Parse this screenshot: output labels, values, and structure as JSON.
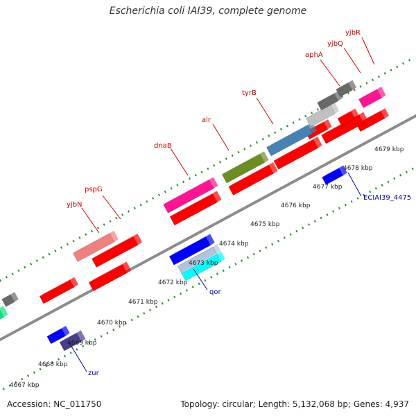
{
  "title": "Escherichia coli IAI39, complete genome",
  "accession_text": "Accession: NC_011750",
  "summary_text": "Topology: circular; Length: 5,132,068 bp; Genes: 4,937",
  "colors": {
    "backbone": "#8c8c8c",
    "dots_top": "#2e8b2e",
    "dots_bottom": "#2e8b2e",
    "label_plus": "#cc0000",
    "label_minus": "#0000aa"
  },
  "ticks": [
    {
      "label": "4667 kbp"
    },
    {
      "label": "4668 kbp"
    },
    {
      "label": "4669 kbp"
    },
    {
      "label": "4670 kbp"
    },
    {
      "label": "4671 kbp"
    },
    {
      "label": "4672 kbp"
    },
    {
      "label": "4673 kbp"
    },
    {
      "label": "4674 kbp"
    },
    {
      "label": "4675 kbp"
    },
    {
      "label": "4676 kbp"
    },
    {
      "label": "4677 kbp"
    },
    {
      "label": "4678 kbp"
    },
    {
      "label": "4679 kbp"
    }
  ],
  "gene_labels": [
    {
      "name": "yjbN",
      "strand": "plus"
    },
    {
      "name": "pspG",
      "strand": "plus"
    },
    {
      "name": "dnaB",
      "strand": "plus"
    },
    {
      "name": "alr",
      "strand": "plus"
    },
    {
      "name": "tyrB",
      "strand": "plus"
    },
    {
      "name": "aphA",
      "strand": "plus"
    },
    {
      "name": "yjbQ",
      "strand": "plus"
    },
    {
      "name": "yjbR",
      "strand": "plus"
    },
    {
      "name": "zur",
      "strand": "minus"
    },
    {
      "name": "qor",
      "strand": "minus"
    },
    {
      "name": "ECIAI39_4475",
      "strand": "minus"
    }
  ],
  "features": [
    {
      "color": "#ff0000"
    },
    {
      "color": "#ff0000"
    },
    {
      "color": "#ff0000"
    },
    {
      "color": "#ff0000"
    },
    {
      "color": "#ff0000"
    },
    {
      "color": "#ff0000"
    },
    {
      "color": "#ff0000"
    },
    {
      "color": "#ff0000"
    },
    {
      "color": "#ff0000"
    },
    {
      "color": "#ff0000"
    },
    {
      "color": "#f08080"
    },
    {
      "color": "#ff1493"
    },
    {
      "color": "#6b8e23"
    },
    {
      "color": "#4682b4"
    },
    {
      "color": "#c0c0c0"
    },
    {
      "color": "#696969"
    },
    {
      "color": "#696969"
    },
    {
      "color": "#00e680"
    },
    {
      "color": "#696969"
    },
    {
      "color": "#ff1493"
    },
    {
      "color": "#0000ff"
    },
    {
      "color": "#483d8b"
    },
    {
      "color": "#0000ff"
    },
    {
      "color": "#b0c4de"
    },
    {
      "color": "#00ffff"
    },
    {
      "color": "#0000ff"
    }
  ]
}
